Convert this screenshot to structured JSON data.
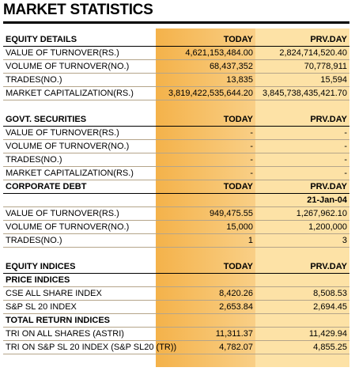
{
  "title": "MARKET STATISTICS",
  "sections": [
    {
      "header": [
        "EQUITY DETAILS",
        "TODAY",
        "PRV.DAY"
      ],
      "rows": [
        [
          "VALUE OF TURNOVER(RS.)",
          "4,621,153,484.00",
          "2,824,714,520.40"
        ],
        [
          "VOLUME OF TURNOVER(NO.)",
          "68,437,352",
          "70,778,911"
        ],
        [
          "TRADES(NO.)",
          "13,835",
          "15,594"
        ],
        [
          "MARKET CAPITALIZATION(RS.)",
          "3,819,422,535,644.20",
          "3,845,738,435,421.70"
        ]
      ]
    },
    {
      "header": [
        "GOVT. SECURITIES",
        "TODAY",
        "PRV.DAY"
      ],
      "rows": [
        [
          "VALUE OF TURNOVER(RS.)",
          "-",
          "-"
        ],
        [
          "VOLUME OF TURNOVER(NO.)",
          "-",
          "-"
        ],
        [
          "TRADES(NO.)",
          "-",
          "-"
        ],
        [
          "MARKET CAPITALIZATION(RS.)",
          "-",
          "-"
        ]
      ]
    },
    {
      "header": [
        "CORPORATE DEBT",
        "TODAY",
        "PRV.DAY"
      ],
      "date": "21-Jan-04",
      "rows": [
        [
          "VALUE OF TURNOVER(RS.)",
          "949,475.55",
          "1,267,962.10"
        ],
        [
          "VOLUME OF TURNOVER(NO.)",
          "15,000",
          "1,200,000"
        ],
        [
          "TRADES(NO.)",
          "1",
          "3"
        ]
      ]
    },
    {
      "header": [
        "EQUITY INDICES",
        "TODAY",
        "PRV.DAY"
      ],
      "rows": [
        [
          "PRICE INDICES"
        ],
        [
          "CSE ALL SHARE INDEX",
          "8,420.26",
          "8,508.53"
        ],
        [
          "S&P SL 20 INDEX",
          "2,653.84",
          "2,694.45"
        ],
        [
          "TOTAL RETURN INDICES"
        ],
        [
          "TRI ON ALL SHARES (ASTRI)",
          "11,311.37",
          "11,429.94"
        ],
        [
          "TRI ON S&P SL 20 INDEX (S&P SL20 (TR))",
          "4,782.07",
          "4,855.25"
        ]
      ]
    }
  ]
}
